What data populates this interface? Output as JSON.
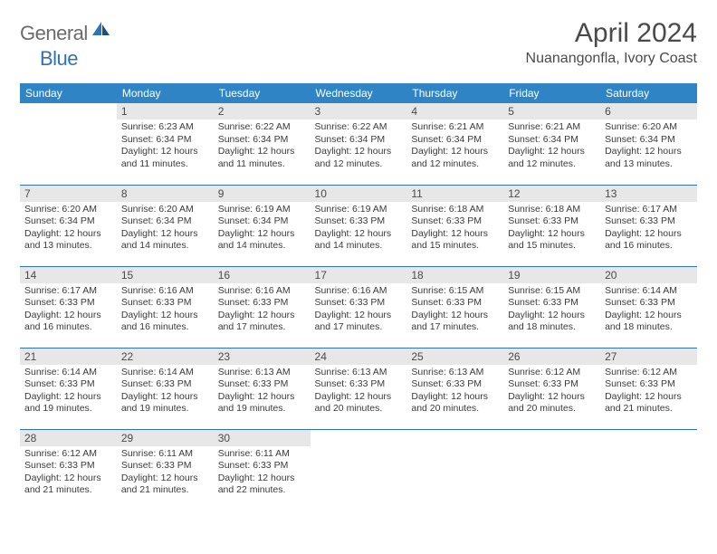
{
  "brand": {
    "word1": "General",
    "word2": "Blue"
  },
  "title": "April 2024",
  "location": "Nuanangonfla, Ivory Coast",
  "colors": {
    "header_bg": "#2f84c6",
    "header_fg": "#ffffff",
    "rule": "#2f73b5",
    "daynum_bg": "#e7e7e7",
    "text": "#3a3a3a",
    "brand_gray": "#6b6b6b",
    "brand_blue": "#2f73b5",
    "page_bg": "#ffffff"
  },
  "typography": {
    "title_fontsize": 30,
    "location_fontsize": 16,
    "header_fontsize": 12,
    "daynum_fontsize": 12,
    "body_fontsize": 10.5
  },
  "columns": [
    "Sunday",
    "Monday",
    "Tuesday",
    "Wednesday",
    "Thursday",
    "Friday",
    "Saturday"
  ],
  "weeks": [
    [
      {
        "day": "",
        "sunrise": "",
        "sunset": "",
        "daylight": ""
      },
      {
        "day": "1",
        "sunrise": "Sunrise: 6:23 AM",
        "sunset": "Sunset: 6:34 PM",
        "daylight": "Daylight: 12 hours and 11 minutes."
      },
      {
        "day": "2",
        "sunrise": "Sunrise: 6:22 AM",
        "sunset": "Sunset: 6:34 PM",
        "daylight": "Daylight: 12 hours and 11 minutes."
      },
      {
        "day": "3",
        "sunrise": "Sunrise: 6:22 AM",
        "sunset": "Sunset: 6:34 PM",
        "daylight": "Daylight: 12 hours and 12 minutes."
      },
      {
        "day": "4",
        "sunrise": "Sunrise: 6:21 AM",
        "sunset": "Sunset: 6:34 PM",
        "daylight": "Daylight: 12 hours and 12 minutes."
      },
      {
        "day": "5",
        "sunrise": "Sunrise: 6:21 AM",
        "sunset": "Sunset: 6:34 PM",
        "daylight": "Daylight: 12 hours and 12 minutes."
      },
      {
        "day": "6",
        "sunrise": "Sunrise: 6:20 AM",
        "sunset": "Sunset: 6:34 PM",
        "daylight": "Daylight: 12 hours and 13 minutes."
      }
    ],
    [
      {
        "day": "7",
        "sunrise": "Sunrise: 6:20 AM",
        "sunset": "Sunset: 6:34 PM",
        "daylight": "Daylight: 12 hours and 13 minutes."
      },
      {
        "day": "8",
        "sunrise": "Sunrise: 6:20 AM",
        "sunset": "Sunset: 6:34 PM",
        "daylight": "Daylight: 12 hours and 14 minutes."
      },
      {
        "day": "9",
        "sunrise": "Sunrise: 6:19 AM",
        "sunset": "Sunset: 6:34 PM",
        "daylight": "Daylight: 12 hours and 14 minutes."
      },
      {
        "day": "10",
        "sunrise": "Sunrise: 6:19 AM",
        "sunset": "Sunset: 6:33 PM",
        "daylight": "Daylight: 12 hours and 14 minutes."
      },
      {
        "day": "11",
        "sunrise": "Sunrise: 6:18 AM",
        "sunset": "Sunset: 6:33 PM",
        "daylight": "Daylight: 12 hours and 15 minutes."
      },
      {
        "day": "12",
        "sunrise": "Sunrise: 6:18 AM",
        "sunset": "Sunset: 6:33 PM",
        "daylight": "Daylight: 12 hours and 15 minutes."
      },
      {
        "day": "13",
        "sunrise": "Sunrise: 6:17 AM",
        "sunset": "Sunset: 6:33 PM",
        "daylight": "Daylight: 12 hours and 16 minutes."
      }
    ],
    [
      {
        "day": "14",
        "sunrise": "Sunrise: 6:17 AM",
        "sunset": "Sunset: 6:33 PM",
        "daylight": "Daylight: 12 hours and 16 minutes."
      },
      {
        "day": "15",
        "sunrise": "Sunrise: 6:16 AM",
        "sunset": "Sunset: 6:33 PM",
        "daylight": "Daylight: 12 hours and 16 minutes."
      },
      {
        "day": "16",
        "sunrise": "Sunrise: 6:16 AM",
        "sunset": "Sunset: 6:33 PM",
        "daylight": "Daylight: 12 hours and 17 minutes."
      },
      {
        "day": "17",
        "sunrise": "Sunrise: 6:16 AM",
        "sunset": "Sunset: 6:33 PM",
        "daylight": "Daylight: 12 hours and 17 minutes."
      },
      {
        "day": "18",
        "sunrise": "Sunrise: 6:15 AM",
        "sunset": "Sunset: 6:33 PM",
        "daylight": "Daylight: 12 hours and 17 minutes."
      },
      {
        "day": "19",
        "sunrise": "Sunrise: 6:15 AM",
        "sunset": "Sunset: 6:33 PM",
        "daylight": "Daylight: 12 hours and 18 minutes."
      },
      {
        "day": "20",
        "sunrise": "Sunrise: 6:14 AM",
        "sunset": "Sunset: 6:33 PM",
        "daylight": "Daylight: 12 hours and 18 minutes."
      }
    ],
    [
      {
        "day": "21",
        "sunrise": "Sunrise: 6:14 AM",
        "sunset": "Sunset: 6:33 PM",
        "daylight": "Daylight: 12 hours and 19 minutes."
      },
      {
        "day": "22",
        "sunrise": "Sunrise: 6:14 AM",
        "sunset": "Sunset: 6:33 PM",
        "daylight": "Daylight: 12 hours and 19 minutes."
      },
      {
        "day": "23",
        "sunrise": "Sunrise: 6:13 AM",
        "sunset": "Sunset: 6:33 PM",
        "daylight": "Daylight: 12 hours and 19 minutes."
      },
      {
        "day": "24",
        "sunrise": "Sunrise: 6:13 AM",
        "sunset": "Sunset: 6:33 PM",
        "daylight": "Daylight: 12 hours and 20 minutes."
      },
      {
        "day": "25",
        "sunrise": "Sunrise: 6:13 AM",
        "sunset": "Sunset: 6:33 PM",
        "daylight": "Daylight: 12 hours and 20 minutes."
      },
      {
        "day": "26",
        "sunrise": "Sunrise: 6:12 AM",
        "sunset": "Sunset: 6:33 PM",
        "daylight": "Daylight: 12 hours and 20 minutes."
      },
      {
        "day": "27",
        "sunrise": "Sunrise: 6:12 AM",
        "sunset": "Sunset: 6:33 PM",
        "daylight": "Daylight: 12 hours and 21 minutes."
      }
    ],
    [
      {
        "day": "28",
        "sunrise": "Sunrise: 6:12 AM",
        "sunset": "Sunset: 6:33 PM",
        "daylight": "Daylight: 12 hours and 21 minutes."
      },
      {
        "day": "29",
        "sunrise": "Sunrise: 6:11 AM",
        "sunset": "Sunset: 6:33 PM",
        "daylight": "Daylight: 12 hours and 21 minutes."
      },
      {
        "day": "30",
        "sunrise": "Sunrise: 6:11 AM",
        "sunset": "Sunset: 6:33 PM",
        "daylight": "Daylight: 12 hours and 22 minutes."
      },
      {
        "day": "",
        "sunrise": "",
        "sunset": "",
        "daylight": ""
      },
      {
        "day": "",
        "sunrise": "",
        "sunset": "",
        "daylight": ""
      },
      {
        "day": "",
        "sunrise": "",
        "sunset": "",
        "daylight": ""
      },
      {
        "day": "",
        "sunrise": "",
        "sunset": "",
        "daylight": ""
      }
    ]
  ]
}
